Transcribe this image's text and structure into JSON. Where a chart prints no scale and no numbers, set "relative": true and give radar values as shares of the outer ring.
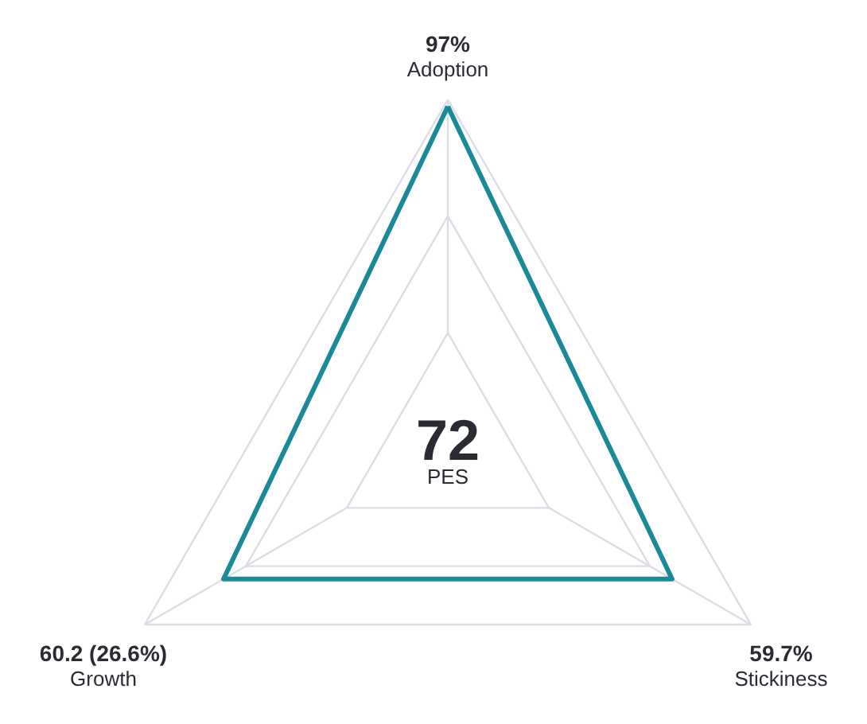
{
  "chart_data": {
    "type": "radar",
    "relative": true,
    "grid": true,
    "categories": [
      "Adoption",
      "Stickiness",
      "Growth"
    ],
    "series": [
      {
        "color": "#1b8a98",
        "values": [
          0.98,
          0.74,
          0.74
        ]
      }
    ],
    "annotations": [
      {
        "text": "97%",
        "x": "Adoption"
      },
      {
        "text": "59.7%",
        "x": "Stickiness"
      },
      {
        "text": "60.2 (26.6%)",
        "x": "Growth"
      },
      "72",
      "PES"
    ]
  }
}
